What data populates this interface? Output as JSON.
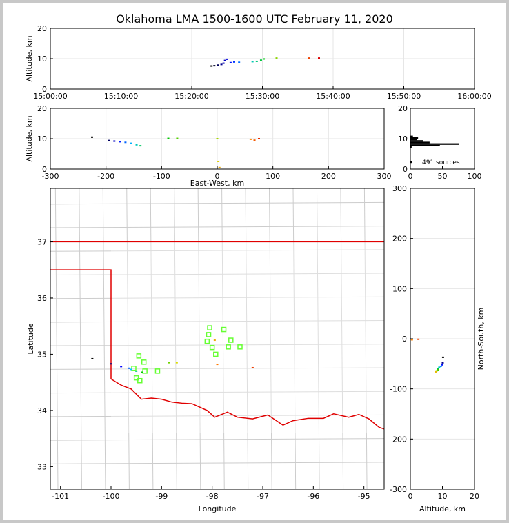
{
  "title": "Oklahoma LMA 1500-1600 UTC February 11, 2020",
  "source_count_label": "491 sources",
  "colors": {
    "grid": "#e6e6e6",
    "county": "#cccccc",
    "state": "#e00000",
    "station": "#66ff33",
    "background": "#ffffff"
  },
  "chart_data": [
    {
      "id": "time_height",
      "type": "scatter",
      "ylabel": "Altitude, km",
      "xlabel": "",
      "ylim": [
        0,
        20
      ],
      "yticks": [
        0,
        10,
        20
      ],
      "xticks": [
        "15:00:00",
        "15:10:00",
        "15:20:00",
        "15:30:00",
        "15:40:00",
        "15:50:00",
        "16:00:00"
      ],
      "xlim_minutes": [
        0,
        60
      ],
      "grid": true,
      "points": [
        {
          "t": 22.8,
          "alt": 7.6
        },
        {
          "t": 23.2,
          "alt": 7.7
        },
        {
          "t": 23.7,
          "alt": 7.9
        },
        {
          "t": 24.2,
          "alt": 8.1
        },
        {
          "t": 24.5,
          "alt": 8.5
        },
        {
          "t": 24.7,
          "alt": 9.4
        },
        {
          "t": 25.0,
          "alt": 9.8
        },
        {
          "t": 25.5,
          "alt": 8.7
        },
        {
          "t": 26.0,
          "alt": 8.9
        },
        {
          "t": 26.7,
          "alt": 8.8
        },
        {
          "t": 28.6,
          "alt": 9.0
        },
        {
          "t": 29.2,
          "alt": 9.1
        },
        {
          "t": 29.8,
          "alt": 9.5
        },
        {
          "t": 30.2,
          "alt": 9.9
        },
        {
          "t": 32.0,
          "alt": 10.2
        },
        {
          "t": 36.6,
          "alt": 10.2
        },
        {
          "t": 38.0,
          "alt": 10.2
        }
      ]
    },
    {
      "id": "ew_height",
      "type": "scatter",
      "xlabel": "East-West, km",
      "ylabel": "Altitude, km",
      "xlim": [
        -300,
        300
      ],
      "ylim": [
        0,
        20
      ],
      "xticks": [
        -300,
        -200,
        -100,
        0,
        100,
        200,
        300
      ],
      "yticks": [
        0,
        10,
        20
      ],
      "grid": true,
      "points": [
        {
          "x": -225,
          "alt": 10.5
        },
        {
          "x": -195,
          "alt": 9.4
        },
        {
          "x": -185,
          "alt": 9.2
        },
        {
          "x": -175,
          "alt": 9.0
        },
        {
          "x": -165,
          "alt": 8.8
        },
        {
          "x": -155,
          "alt": 8.5
        },
        {
          "x": -145,
          "alt": 8.0
        },
        {
          "x": -138,
          "alt": 7.7
        },
        {
          "x": -88,
          "alt": 10.1
        },
        {
          "x": -72,
          "alt": 10.1
        },
        {
          "x": 0,
          "alt": 10.0
        },
        {
          "x": 2,
          "alt": 2.5
        },
        {
          "x": 4,
          "alt": 0.5
        },
        {
          "x": 60,
          "alt": 9.8
        },
        {
          "x": 67,
          "alt": 9.5
        },
        {
          "x": 75,
          "alt": 10.0
        }
      ]
    },
    {
      "id": "altitude_histogram",
      "type": "bar",
      "xlim": [
        0,
        100
      ],
      "ylim": [
        0,
        20
      ],
      "xticks": [
        0,
        50,
        100
      ],
      "yticks": [
        0,
        10,
        20
      ],
      "bins_alt": [
        7.0,
        7.5,
        8.0,
        8.5,
        9.0,
        9.5,
        10.0,
        10.5,
        2.0
      ],
      "counts": [
        2,
        46,
        76,
        30,
        20,
        10,
        12,
        4,
        3
      ]
    },
    {
      "id": "plan_view",
      "type": "scatter",
      "xlabel": "Longitude",
      "ylabel": "Latitude",
      "xlim": [
        -101.2,
        -94.6
      ],
      "ylim": [
        32.6,
        37.95
      ],
      "xticks": [
        -101,
        -100,
        -99,
        -98,
        -97,
        -96,
        -95
      ],
      "yticks": [
        33,
        34,
        35,
        36,
        37
      ],
      "right_axis_label": "North-South, km",
      "right_ylim": [
        -300,
        300
      ],
      "right_yticks": [
        -300,
        -200,
        -100,
        0,
        100,
        200,
        300
      ],
      "stations": [
        {
          "lon": -98.05,
          "lat": 35.47
        },
        {
          "lon": -98.07,
          "lat": 35.35
        },
        {
          "lon": -98.1,
          "lat": 35.23
        },
        {
          "lon": -97.77,
          "lat": 35.44
        },
        {
          "lon": -97.63,
          "lat": 35.25
        },
        {
          "lon": -97.68,
          "lat": 35.13
        },
        {
          "lon": -97.45,
          "lat": 35.13
        },
        {
          "lon": -98.0,
          "lat": 35.12
        },
        {
          "lon": -97.93,
          "lat": 35.0
        },
        {
          "lon": -99.45,
          "lat": 34.97
        },
        {
          "lon": -99.35,
          "lat": 34.86
        },
        {
          "lon": -99.55,
          "lat": 34.75
        },
        {
          "lon": -99.33,
          "lat": 34.7
        },
        {
          "lon": -99.5,
          "lat": 34.58
        },
        {
          "lon": -99.43,
          "lat": 34.53
        },
        {
          "lon": -99.08,
          "lat": 34.7
        }
      ],
      "sources": [
        {
          "lon": -100.37,
          "lat": 34.92
        },
        {
          "lon": -100.0,
          "lat": 34.83
        },
        {
          "lon": -99.8,
          "lat": 34.78
        },
        {
          "lon": -99.65,
          "lat": 34.75
        },
        {
          "lon": -99.6,
          "lat": 34.73
        },
        {
          "lon": -99.5,
          "lat": 34.7
        },
        {
          "lon": -99.38,
          "lat": 34.68
        },
        {
          "lon": -98.85,
          "lat": 34.85
        },
        {
          "lon": -98.7,
          "lat": 34.85
        },
        {
          "lon": -97.95,
          "lat": 35.25
        },
        {
          "lon": -97.9,
          "lat": 34.82
        },
        {
          "lon": -97.2,
          "lat": 34.76
        }
      ]
    },
    {
      "id": "ns_height",
      "type": "scatter",
      "xlabel": "Altitude, km",
      "ylabel": "North-South, km",
      "xlim": [
        0,
        20
      ],
      "ylim": [
        -300,
        300
      ],
      "xticks": [
        0,
        10,
        20
      ],
      "yticks": [
        -300,
        -200,
        -100,
        0,
        100,
        200,
        300
      ],
      "points": [
        {
          "alt": 10.2,
          "y": -37
        },
        {
          "alt": 10.1,
          "y": -48
        },
        {
          "alt": 9.8,
          "y": -52
        },
        {
          "alt": 9.5,
          "y": -55
        },
        {
          "alt": 9.0,
          "y": -57
        },
        {
          "alt": 8.7,
          "y": -60
        },
        {
          "alt": 8.5,
          "y": -62
        },
        {
          "alt": 8.2,
          "y": -64
        },
        {
          "alt": 8.0,
          "y": -66
        },
        {
          "alt": 0.5,
          "y": -2
        },
        {
          "alt": 2.5,
          "y": -1
        }
      ]
    }
  ]
}
